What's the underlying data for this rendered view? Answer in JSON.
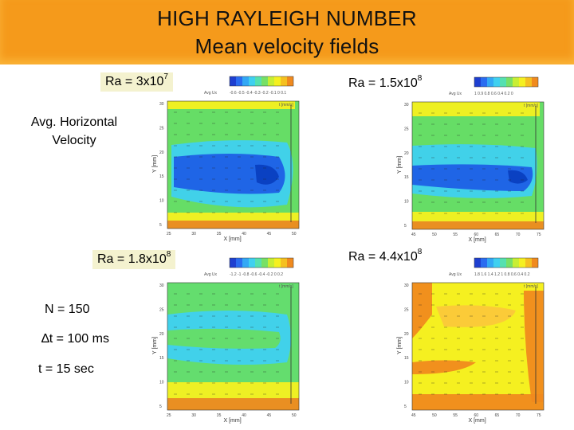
{
  "title": {
    "line1": "HIGH RAYLEIGH NUMBER",
    "line2": "Mean velocity fields"
  },
  "panels": [
    {
      "ra_base": "Ra = 3x10",
      "ra_exp": "7",
      "colorbar_label": "Avg Ux",
      "colorbar_ticks": "-0.6 -0.5 -0.4 -0.3 -0.2 -0.1  0   0.1",
      "xticks": [
        "25",
        "30",
        "35",
        "40",
        "45",
        "50"
      ],
      "yticks": [
        "30",
        "25",
        "20",
        "15",
        "10",
        "5"
      ],
      "xlabel": "X [mm]",
      "ylabel": "Y [mm]",
      "arrow_label": "t [mm/s]"
    },
    {
      "ra_base": "Ra = 1.5x10",
      "ra_exp": "8",
      "colorbar_label": "Avg Ux",
      "colorbar_ticks": "1  0.9  0.8  0.6  0.4  0.2  0",
      "xticks": [
        "45",
        "50",
        "55",
        "60",
        "65",
        "70",
        "75"
      ],
      "yticks": [
        "30",
        "25",
        "20",
        "15",
        "10",
        "5"
      ],
      "xlabel": "X [mm]",
      "ylabel": "Y [mm]",
      "arrow_label": "t [mm/s]"
    },
    {
      "ra_base": "Ra = 1.8x10",
      "ra_exp": "8",
      "colorbar_label": "Avg Ux",
      "colorbar_ticks": "-1.2 -1 -0.8 -0.6 -0.4 -0.2  0  0.2",
      "xticks": [
        "25",
        "30",
        "35",
        "40",
        "45",
        "50"
      ],
      "yticks": [
        "30",
        "25",
        "20",
        "15",
        "10",
        "5"
      ],
      "xlabel": "X [mm]",
      "ylabel": "Y [mm]",
      "arrow_label": "t [mm/s]"
    },
    {
      "ra_base": "Ra = 4.4x10",
      "ra_exp": "8",
      "colorbar_label": "Avg Ux",
      "colorbar_ticks": "1.8 1.6 1.4 1.2  1  0.8  0.6  0.4  0.2",
      "xticks": [
        "45",
        "50",
        "55",
        "60",
        "65",
        "70",
        "75"
      ],
      "yticks": [
        "30",
        "25",
        "20",
        "15",
        "10",
        "5"
      ],
      "xlabel": "X [mm]",
      "ylabel": "Y [mm]",
      "arrow_label": "t [mm/s]"
    }
  ],
  "side": {
    "velocity_line1": "Avg. Horizontal",
    "velocity_line2": "Velocity",
    "n": "N = 150",
    "dt": "∆t = 100 ms",
    "t": "t = 15 sec"
  },
  "colors": {
    "banner": "#f59a1b",
    "ra_box": "#f4f2cf",
    "field_blue": "#1e5fe6",
    "field_cyan": "#3fd0f0",
    "field_green": "#66dd66",
    "field_yellow": "#f5f020",
    "field_orange": "#f08a1e"
  }
}
